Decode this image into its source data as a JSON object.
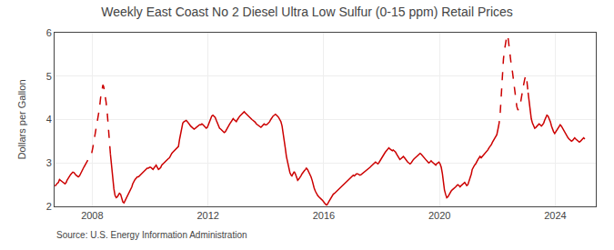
{
  "chart_data": {
    "type": "line",
    "title": "Weekly East Coast No 2 Diesel Ultra Low Sulfur (0-15 ppm) Retail Prices",
    "ylabel": "Dollars per Gallon",
    "annotations": [
      "Source: U.S. Energy Information Administration"
    ],
    "color": "#CC0000",
    "grid": true,
    "xlim": [
      2006.7,
      2025.4
    ],
    "xticks": [
      2008,
      2012,
      2016,
      2020,
      2024
    ],
    "ylim": [
      2,
      6
    ],
    "yticks": [
      2,
      3,
      4,
      5,
      6
    ],
    "series": [
      {
        "line_style": "solid",
        "x": [
          2006.71,
          2006.75,
          2006.79,
          2006.83,
          2006.87,
          2006.9,
          2006.94,
          2006.98,
          2007.02,
          2007.06,
          2007.1,
          2007.13,
          2007.17,
          2007.21,
          2007.25,
          2007.29,
          2007.33,
          2007.37,
          2007.4,
          2007.44,
          2007.48,
          2007.52,
          2007.56,
          2007.6,
          2007.63,
          2007.67,
          2007.71
        ],
        "values": [
          2.47,
          2.49,
          2.53,
          2.55,
          2.62,
          2.6,
          2.58,
          2.56,
          2.54,
          2.52,
          2.55,
          2.6,
          2.65,
          2.7,
          2.73,
          2.76,
          2.79,
          2.78,
          2.75,
          2.72,
          2.7,
          2.68,
          2.7,
          2.75,
          2.8,
          2.85,
          2.9
        ]
      },
      {
        "line_style": "dashed",
        "x": [
          2007.71,
          2007.75,
          2007.79,
          2007.83,
          2007.87,
          2007.9,
          2007.94,
          2007.98,
          2008.02,
          2008.06,
          2008.1,
          2008.13,
          2008.17,
          2008.21,
          2008.25,
          2008.29,
          2008.33,
          2008.37,
          2008.4,
          2008.44,
          2008.48,
          2008.52,
          2008.56,
          2008.6,
          2008.63
        ],
        "values": [
          2.9,
          2.95,
          3.0,
          3.05,
          3.1,
          3.15,
          3.18,
          3.22,
          3.35,
          3.5,
          3.65,
          3.8,
          3.95,
          4.1,
          4.25,
          4.5,
          4.65,
          4.8,
          4.75,
          4.6,
          4.4,
          4.15,
          3.85,
          3.55,
          3.2
        ]
      },
      {
        "line_style": "solid",
        "x": [
          2008.63,
          2008.67,
          2008.71,
          2008.75,
          2008.79,
          2008.83,
          2008.87,
          2008.9,
          2008.94,
          2008.98,
          2009.02,
          2009.06,
          2009.1,
          2009.13,
          2009.17,
          2009.21,
          2009.25,
          2009.29,
          2009.33,
          2009.37,
          2009.4,
          2009.44,
          2009.48,
          2009.52,
          2009.56,
          2009.6,
          2009.63,
          2009.67,
          2009.71,
          2009.75,
          2009.79,
          2009.83,
          2009.87,
          2009.9,
          2009.94,
          2009.98,
          2010.02,
          2010.06,
          2010.1,
          2010.13,
          2010.17,
          2010.21,
          2010.25,
          2010.29,
          2010.33,
          2010.37,
          2010.4,
          2010.44,
          2010.48,
          2010.52,
          2010.56,
          2010.6,
          2010.63,
          2010.67,
          2010.71,
          2010.75,
          2010.79,
          2010.83,
          2010.87,
          2010.9,
          2010.94,
          2010.98,
          2011.02,
          2011.06,
          2011.1,
          2011.13,
          2011.17,
          2011.21,
          2011.25,
          2011.29,
          2011.33,
          2011.37,
          2011.4,
          2011.44,
          2011.48,
          2011.52,
          2011.56,
          2011.6,
          2011.63,
          2011.67,
          2011.71,
          2011.75,
          2011.79,
          2011.83,
          2011.87,
          2011.9,
          2011.94,
          2011.98,
          2012.02,
          2012.06,
          2012.1,
          2012.13,
          2012.17,
          2012.21,
          2012.25,
          2012.29,
          2012.33,
          2012.37,
          2012.4,
          2012.44,
          2012.48,
          2012.52,
          2012.56,
          2012.6,
          2012.63,
          2012.67,
          2012.71,
          2012.75,
          2012.79,
          2012.83,
          2012.87,
          2012.9,
          2012.94,
          2012.98,
          2013.02,
          2013.06,
          2013.1,
          2013.13,
          2013.17,
          2013.21,
          2013.25,
          2013.29,
          2013.33,
          2013.37,
          2013.4,
          2013.44,
          2013.48,
          2013.52,
          2013.56,
          2013.6,
          2013.63,
          2013.67,
          2013.71,
          2013.75,
          2013.79,
          2013.83,
          2013.87,
          2013.9,
          2013.94,
          2013.98,
          2014.02,
          2014.06,
          2014.1,
          2014.13,
          2014.17,
          2014.21,
          2014.25,
          2014.29,
          2014.33,
          2014.37,
          2014.4,
          2014.44,
          2014.48,
          2014.52,
          2014.56,
          2014.6,
          2014.63,
          2014.67,
          2014.71,
          2014.75,
          2014.79,
          2014.83,
          2014.87,
          2014.9,
          2014.94,
          2014.98,
          2015.02,
          2015.06,
          2015.1,
          2015.13,
          2015.17,
          2015.21,
          2015.25,
          2015.29,
          2015.33,
          2015.37,
          2015.4,
          2015.44,
          2015.48,
          2015.52,
          2015.56,
          2015.6,
          2015.63,
          2015.67,
          2015.71,
          2015.75,
          2015.79,
          2015.83,
          2015.87,
          2015.9,
          2015.94,
          2015.98,
          2016.02,
          2016.06,
          2016.1,
          2016.13,
          2016.17,
          2016.21,
          2016.25,
          2016.29,
          2016.33,
          2016.37,
          2016.4,
          2016.44,
          2016.48,
          2016.52,
          2016.56,
          2016.6,
          2016.63,
          2016.67,
          2016.71,
          2016.75,
          2016.79,
          2016.83,
          2016.87,
          2016.9,
          2016.94,
          2016.98,
          2017.02,
          2017.06,
          2017.1,
          2017.13,
          2017.17,
          2017.21,
          2017.25,
          2017.29,
          2017.33,
          2017.37,
          2017.4,
          2017.44,
          2017.48,
          2017.52,
          2017.56,
          2017.6,
          2017.63,
          2017.67,
          2017.71,
          2017.75,
          2017.79,
          2017.83,
          2017.87,
          2017.9,
          2017.94,
          2017.98,
          2018.02,
          2018.06,
          2018.1,
          2018.13,
          2018.17,
          2018.21,
          2018.25,
          2018.29,
          2018.33,
          2018.37,
          2018.4,
          2018.44,
          2018.48,
          2018.52,
          2018.56,
          2018.6,
          2018.63,
          2018.67,
          2018.71,
          2018.75,
          2018.79,
          2018.83,
          2018.87,
          2018.9,
          2018.94,
          2018.98,
          2019.02,
          2019.06,
          2019.1,
          2019.13,
          2019.17,
          2019.21,
          2019.25,
          2019.29,
          2019.33,
          2019.37,
          2019.4,
          2019.44,
          2019.48,
          2019.52,
          2019.56,
          2019.6,
          2019.63,
          2019.67,
          2019.71,
          2019.75,
          2019.79,
          2019.83,
          2019.87,
          2019.9,
          2019.94,
          2019.98,
          2020.02,
          2020.06,
          2020.1,
          2020.13,
          2020.17,
          2020.21,
          2020.25,
          2020.29,
          2020.33,
          2020.37,
          2020.4,
          2020.44,
          2020.48,
          2020.52,
          2020.56,
          2020.6,
          2020.63,
          2020.67,
          2020.71,
          2020.75,
          2020.79,
          2020.83,
          2020.87,
          2020.9,
          2020.94,
          2020.98,
          2021.02,
          2021.06,
          2021.1,
          2021.13,
          2021.17,
          2021.21,
          2021.25,
          2021.29,
          2021.33,
          2021.37,
          2021.4,
          2021.44,
          2021.48,
          2021.52,
          2021.56,
          2021.6,
          2021.63,
          2021.67,
          2021.71,
          2021.75,
          2021.79,
          2021.83,
          2021.87,
          2021.9,
          2021.94,
          2021.98,
          2022.02
        ],
        "values": [
          3.2,
          2.9,
          2.6,
          2.4,
          2.25,
          2.2,
          2.22,
          2.25,
          2.3,
          2.28,
          2.18,
          2.1,
          2.08,
          2.12,
          2.18,
          2.25,
          2.3,
          2.35,
          2.4,
          2.45,
          2.52,
          2.58,
          2.62,
          2.65,
          2.68,
          2.68,
          2.7,
          2.72,
          2.75,
          2.77,
          2.8,
          2.82,
          2.85,
          2.88,
          2.88,
          2.9,
          2.9,
          2.88,
          2.85,
          2.88,
          2.92,
          2.95,
          2.9,
          2.85,
          2.87,
          2.9,
          2.95,
          2.98,
          3.0,
          3.02,
          3.05,
          3.08,
          3.1,
          3.12,
          3.18,
          3.22,
          3.25,
          3.28,
          3.3,
          3.32,
          3.35,
          3.38,
          3.55,
          3.7,
          3.85,
          3.92,
          3.95,
          3.97,
          3.98,
          3.95,
          3.9,
          3.88,
          3.85,
          3.82,
          3.8,
          3.78,
          3.8,
          3.82,
          3.85,
          3.87,
          3.88,
          3.88,
          3.9,
          3.88,
          3.85,
          3.82,
          3.8,
          3.82,
          3.88,
          3.95,
          4.02,
          4.08,
          4.1,
          4.08,
          4.05,
          3.98,
          3.9,
          3.85,
          3.8,
          3.78,
          3.75,
          3.72,
          3.7,
          3.72,
          3.75,
          3.8,
          3.85,
          3.9,
          3.95,
          4.0,
          4.02,
          4.0,
          3.98,
          3.95,
          4.0,
          4.05,
          4.08,
          4.1,
          4.12,
          4.15,
          4.18,
          4.15,
          4.12,
          4.1,
          4.08,
          4.05,
          4.02,
          4.0,
          3.98,
          3.96,
          3.94,
          3.9,
          3.88,
          3.85,
          3.83,
          3.82,
          3.85,
          3.88,
          3.9,
          3.88,
          3.88,
          3.9,
          3.92,
          3.95,
          4.0,
          4.05,
          4.08,
          4.1,
          4.12,
          4.1,
          4.08,
          4.05,
          4.0,
          3.95,
          3.85,
          3.7,
          3.55,
          3.35,
          3.15,
          3.0,
          2.88,
          2.78,
          2.72,
          2.7,
          2.75,
          2.8,
          2.75,
          2.65,
          2.6,
          2.62,
          2.65,
          2.7,
          2.75,
          2.8,
          2.82,
          2.85,
          2.88,
          2.85,
          2.8,
          2.75,
          2.68,
          2.6,
          2.5,
          2.42,
          2.35,
          2.28,
          2.25,
          2.22,
          2.2,
          2.18,
          2.15,
          2.12,
          2.08,
          2.05,
          2.03,
          2.05,
          2.1,
          2.15,
          2.2,
          2.25,
          2.28,
          2.3,
          2.32,
          2.35,
          2.38,
          2.4,
          2.42,
          2.45,
          2.48,
          2.5,
          2.52,
          2.55,
          2.58,
          2.6,
          2.62,
          2.65,
          2.68,
          2.7,
          2.72,
          2.7,
          2.72,
          2.75,
          2.75,
          2.73,
          2.72,
          2.73,
          2.75,
          2.77,
          2.8,
          2.82,
          2.83,
          2.85,
          2.88,
          2.9,
          2.92,
          2.95,
          2.98,
          3.0,
          3.02,
          3.0,
          2.98,
          3.0,
          3.05,
          3.08,
          3.15,
          3.2,
          3.22,
          3.25,
          3.28,
          3.32,
          3.35,
          3.32,
          3.3,
          3.28,
          3.3,
          3.28,
          3.25,
          3.2,
          3.15,
          3.1,
          3.08,
          3.1,
          3.12,
          3.15,
          3.12,
          3.08,
          3.05,
          3.02,
          3.0,
          2.98,
          3.0,
          3.05,
          3.08,
          3.1,
          3.12,
          3.15,
          3.18,
          3.2,
          3.22,
          3.2,
          3.18,
          3.15,
          3.12,
          3.08,
          3.05,
          3.02,
          3.0,
          3.02,
          3.05,
          3.02,
          3.0,
          2.98,
          2.95,
          2.98,
          3.0,
          3.02,
          2.98,
          2.9,
          2.75,
          2.55,
          2.38,
          2.28,
          2.2,
          2.22,
          2.28,
          2.32,
          2.35,
          2.38,
          2.4,
          2.42,
          2.45,
          2.48,
          2.5,
          2.48,
          2.45,
          2.48,
          2.5,
          2.52,
          2.55,
          2.52,
          2.48,
          2.5,
          2.58,
          2.65,
          2.75,
          2.85,
          2.92,
          2.95,
          2.98,
          3.05,
          3.08,
          3.12,
          3.15,
          3.12,
          3.15,
          3.2,
          3.22,
          3.25,
          3.28,
          3.3,
          3.35,
          3.38,
          3.42,
          3.48,
          3.52,
          3.55,
          3.6,
          3.65,
          3.78
        ]
      },
      {
        "line_style": "dashed",
        "x": [
          2022.02,
          2022.06,
          2022.1,
          2022.13,
          2022.17,
          2022.21,
          2022.25,
          2022.29,
          2022.33,
          2022.37,
          2022.4,
          2022.44,
          2022.48,
          2022.52,
          2022.56,
          2022.6,
          2022.63,
          2022.67,
          2022.71,
          2022.75,
          2022.79,
          2022.83,
          2022.87,
          2022.9,
          2022.94,
          2022.98,
          2023.02,
          2023.06
        ],
        "values": [
          3.78,
          3.92,
          4.18,
          4.58,
          5.08,
          5.4,
          5.62,
          5.8,
          5.95,
          5.88,
          5.68,
          5.48,
          5.25,
          5.1,
          4.9,
          4.68,
          4.45,
          4.3,
          4.22,
          4.25,
          4.35,
          4.48,
          4.62,
          4.78,
          4.92,
          5.02,
          4.88,
          4.62
        ]
      },
      {
        "line_style": "solid",
        "x": [
          2023.06,
          2023.1,
          2023.13,
          2023.17,
          2023.21,
          2023.25,
          2023.29,
          2023.33,
          2023.37,
          2023.4,
          2023.44,
          2023.48,
          2023.52,
          2023.56,
          2023.6,
          2023.63,
          2023.67,
          2023.71,
          2023.75,
          2023.79,
          2023.83,
          2023.87,
          2023.9,
          2023.94,
          2023.98,
          2024.02,
          2024.06,
          2024.1,
          2024.13,
          2024.17,
          2024.21,
          2024.25,
          2024.29,
          2024.33,
          2024.37,
          2024.4,
          2024.44,
          2024.48,
          2024.52,
          2024.56,
          2024.6,
          2024.63,
          2024.67,
          2024.71,
          2024.75,
          2024.79,
          2024.83,
          2024.87,
          2024.9,
          2024.94,
          2024.98,
          2025.02
        ],
        "values": [
          4.62,
          4.38,
          4.18,
          4.02,
          3.92,
          3.85,
          3.8,
          3.82,
          3.85,
          3.88,
          3.9,
          3.88,
          3.85,
          3.88,
          3.92,
          3.98,
          4.05,
          4.1,
          4.08,
          4.02,
          3.95,
          3.85,
          3.78,
          3.72,
          3.68,
          3.72,
          3.78,
          3.82,
          3.85,
          3.88,
          3.85,
          3.8,
          3.75,
          3.7,
          3.65,
          3.6,
          3.58,
          3.55,
          3.52,
          3.5,
          3.52,
          3.55,
          3.58,
          3.55,
          3.52,
          3.5,
          3.48,
          3.5,
          3.52,
          3.55,
          3.58,
          3.55
        ]
      }
    ]
  }
}
